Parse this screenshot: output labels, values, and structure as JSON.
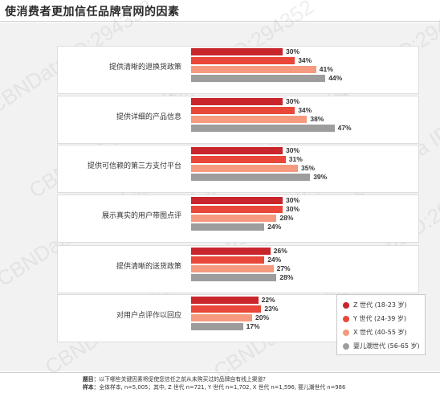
{
  "title": "使消费者更加信任品牌官网的因素",
  "watermark": "CBNData ID:294352",
  "chart_data": {
    "type": "bar",
    "orientation": "horizontal",
    "categories": [
      "提供清晰的退换货政策",
      "提供详细的产品信息",
      "提供可信赖的第三方支付平台",
      "展示真实的用户带图点评",
      "提供清晰的送货政策",
      "对用户点评作以回应"
    ],
    "series": [
      {
        "name": "Z 世代 (18-23 岁)",
        "color": "#c9252c",
        "values": [
          30,
          30,
          30,
          30,
          26,
          22
        ],
        "labels": [
          "30%",
          "30%",
          "30%",
          "30%",
          "26%",
          "22%"
        ]
      },
      {
        "name": "Y 世代 (24-39 岁)",
        "color": "#e8473a",
        "values": [
          34,
          34,
          31,
          30,
          24,
          23
        ],
        "labels": [
          "34%",
          "34%",
          "31%",
          "30%",
          "24%",
          "23%"
        ]
      },
      {
        "name": "X 世代 (40-55 岁)",
        "color": "#f59a7e",
        "values": [
          41,
          38,
          35,
          28,
          27,
          20
        ],
        "labels": [
          "41%",
          "38%",
          "35%",
          "28%",
          "27%",
          "20%"
        ]
      },
      {
        "name": "婴儿潮世代 (56-65 岁)",
        "color": "#9d9d9d",
        "values": [
          44,
          47,
          39,
          24,
          28,
          17
        ],
        "labels": [
          "44%",
          "47%",
          "39%",
          "24%",
          "28%",
          "17%"
        ]
      }
    ],
    "xlim": [
      0,
      50
    ],
    "grid": false,
    "legend_position": "bottom-right"
  },
  "footnote": {
    "question_label": "题目：",
    "question_text": "以下哪些关键因素将促使您信任之前从未购买过的品牌自有线上渠道?",
    "sample_label": "样本：",
    "sample_text": "全体样本, n=5,005；其中, Z 世代 n=721, Y 世代 n=1,702, X 世代 n=1,596, 婴儿潮世代 n=986"
  }
}
